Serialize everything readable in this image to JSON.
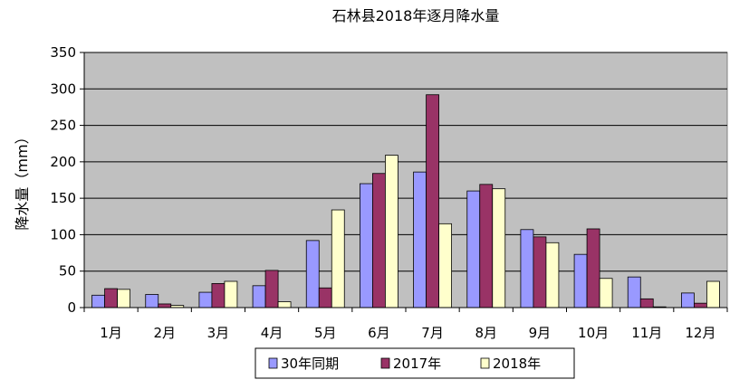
{
  "chart_data": {
    "type": "bar",
    "title": "石林县2018年逐月降水量",
    "xlabel": "",
    "ylabel": "降水量（mm）",
    "ylim": [
      0,
      350
    ],
    "yticks": [
      0,
      50,
      100,
      150,
      200,
      250,
      300,
      350
    ],
    "grid": true,
    "legend_position": "bottom",
    "categories": [
      "1月",
      "2月",
      "3月",
      "4月",
      "5月",
      "6月",
      "7月",
      "8月",
      "9月",
      "10月",
      "11月",
      "12月"
    ],
    "series": [
      {
        "name": "30年同期",
        "color": "#9999ff",
        "values": [
          17,
          18,
          21,
          30,
          92,
          170,
          186,
          160,
          107,
          73,
          42,
          20
        ]
      },
      {
        "name": "2017年",
        "color": "#993366",
        "values": [
          26,
          5,
          33,
          51,
          27,
          184,
          292,
          169,
          97,
          108,
          12,
          6
        ]
      },
      {
        "name": "2018年",
        "color": "#ffffcc",
        "values": [
          25,
          3,
          36,
          8,
          134,
          209,
          115,
          163,
          89,
          40,
          1,
          36
        ]
      }
    ],
    "plot_background": "#c0c0c0"
  }
}
